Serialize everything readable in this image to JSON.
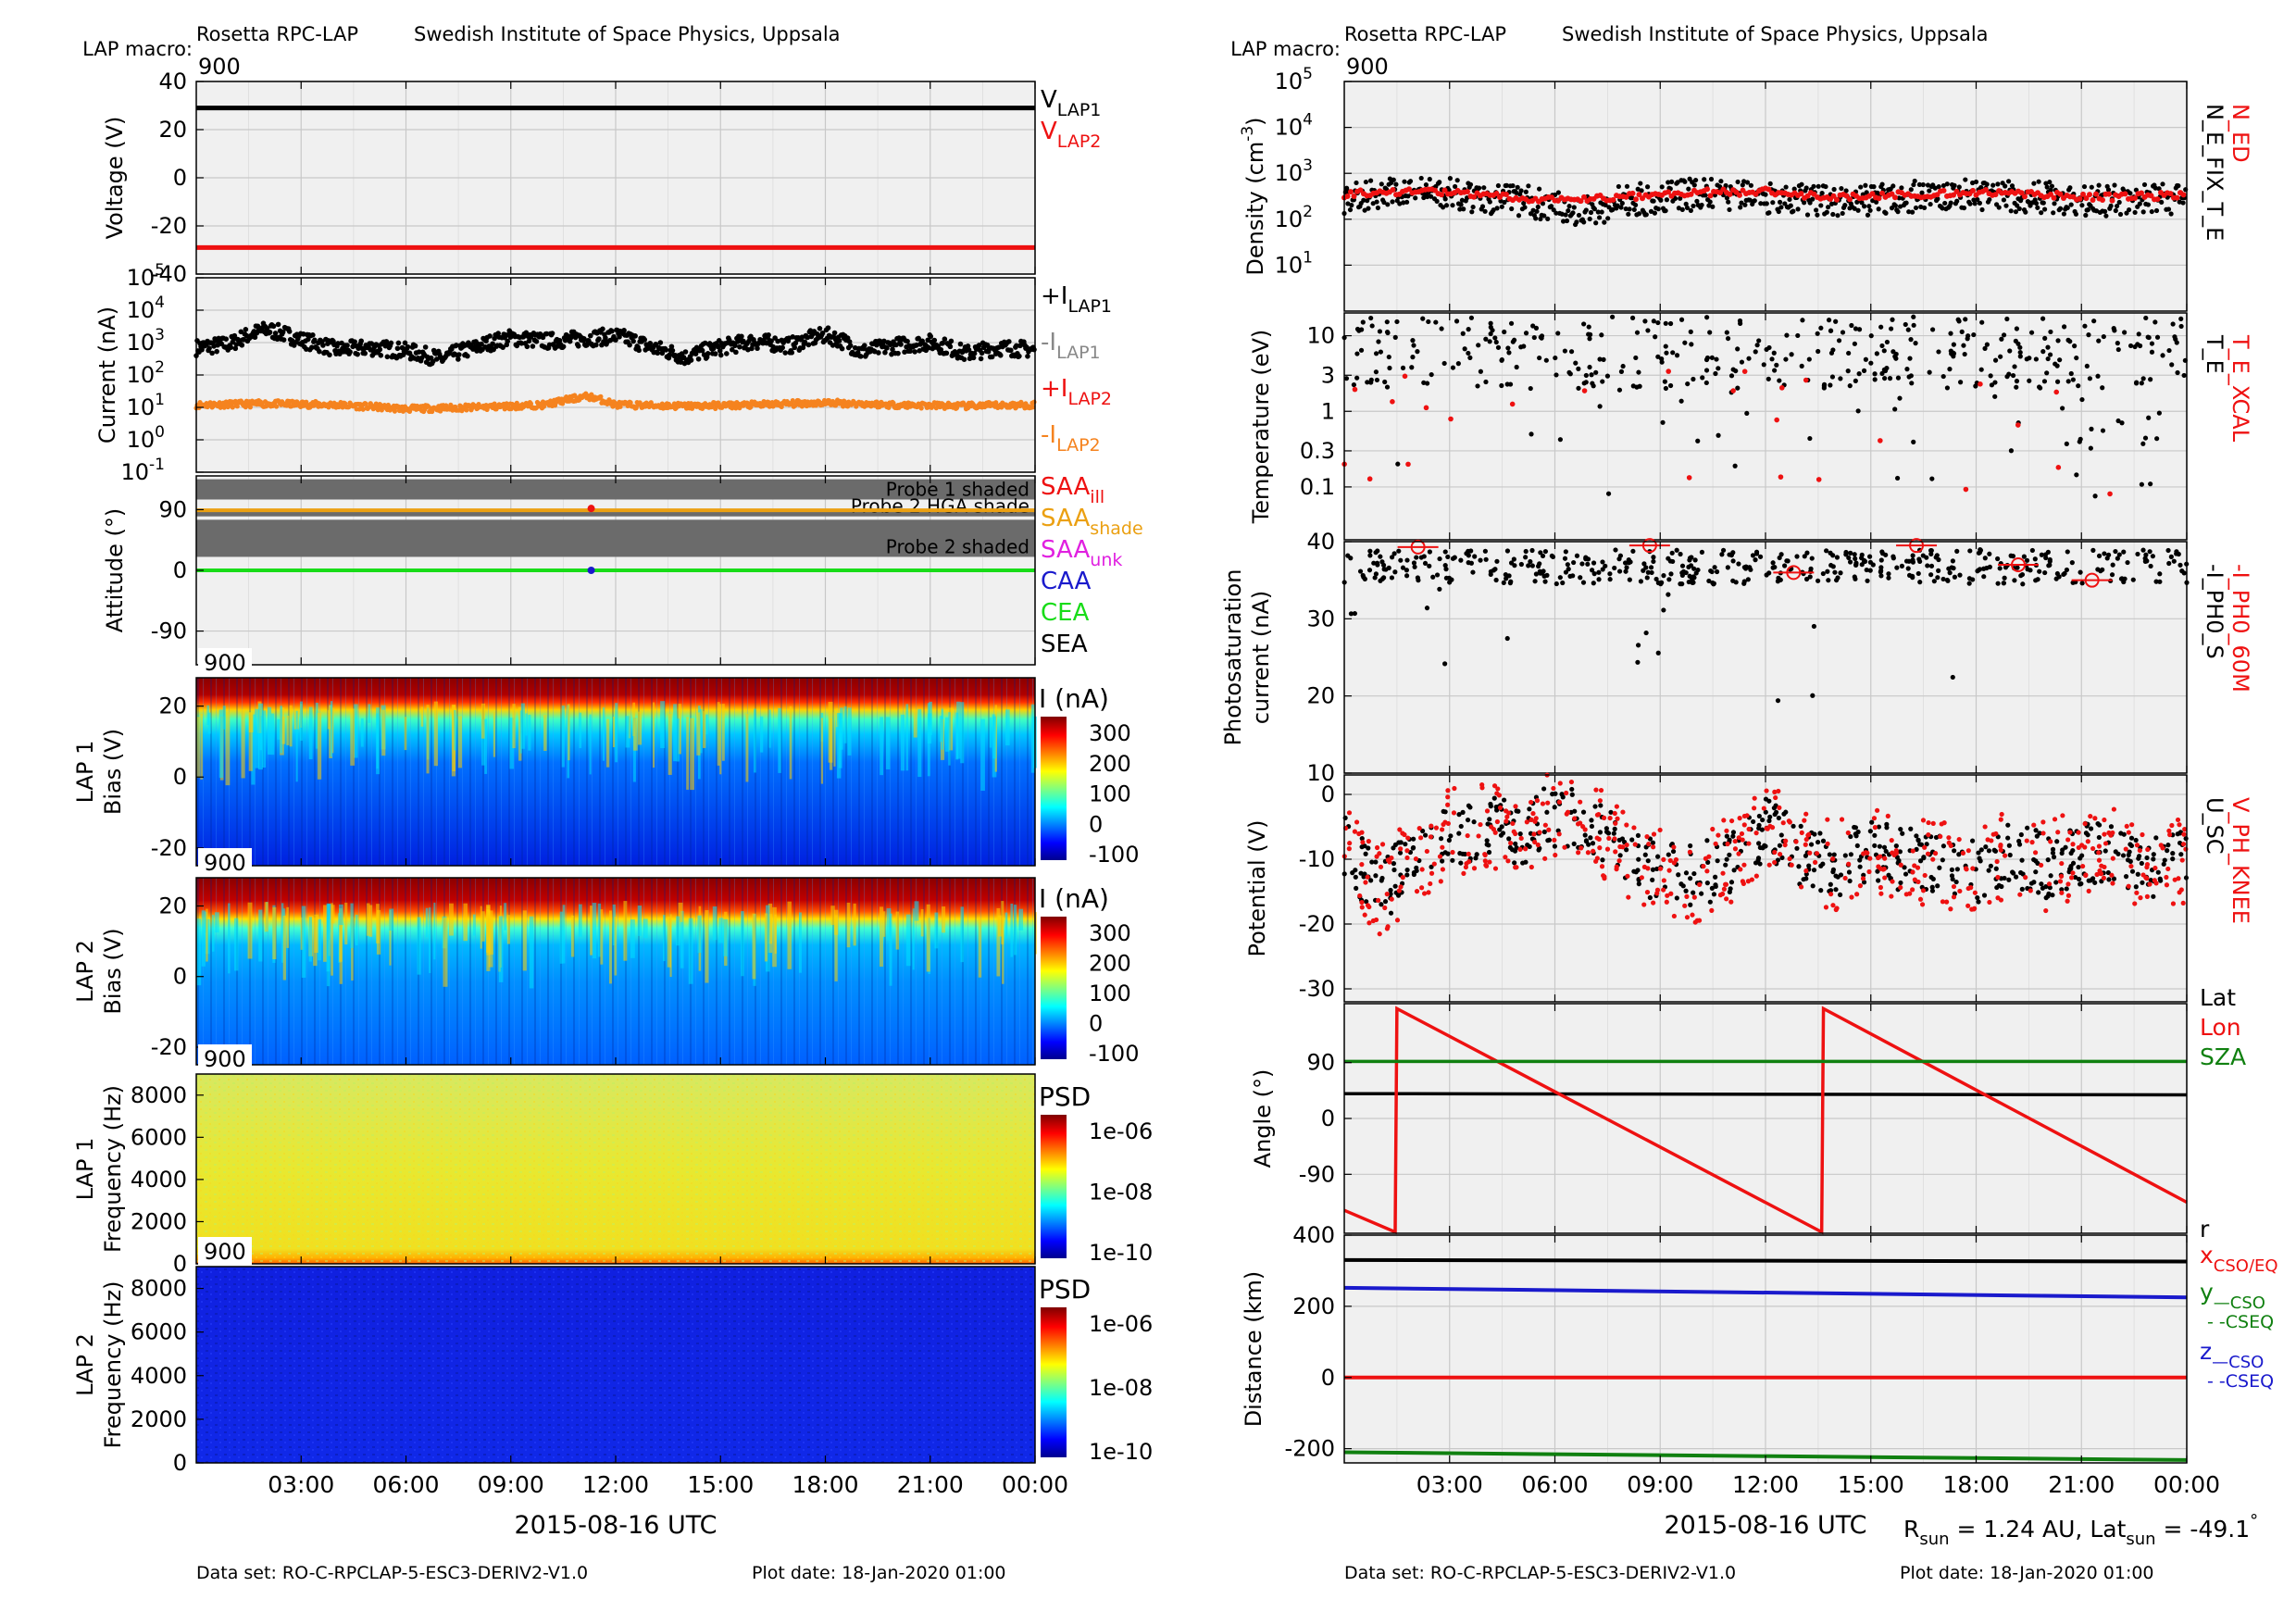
{
  "header": {
    "title_left": "Rosetta RPC-LAP",
    "title_right": "Swedish Institute of Space Physics, Uppsala",
    "macro_label": "LAP macro:",
    "macro_value": "900"
  },
  "footer": {
    "dataset": "Data set: RO-C-RPCLAP-5-ESC3-DERIV2-V1.0",
    "plot_date": "Plot date: 18-Jan-2020 01:00"
  },
  "rsun": {
    "r_main": "R",
    "r_sub": "sun",
    "r_val": " = 1.24 AU, Lat",
    "lat_sub": "sun",
    "lat_val": " = -49.1",
    "deg": "°"
  },
  "time_axis": {
    "ticks": [
      "03:00",
      "06:00",
      "09:00",
      "12:00",
      "15:00",
      "18:00",
      "21:00",
      "00:00"
    ],
    "tick_hours": [
      3,
      6,
      9,
      12,
      15,
      18,
      21,
      24
    ],
    "label": "2015-08-16 UTC"
  },
  "colors": {
    "black": "#000000",
    "red": "#ee1111",
    "grey": "#888888",
    "orange": "#f5831f",
    "amber": "#eba012",
    "magenta": "#e020e0",
    "blue": "#1a1acc",
    "green": "#18dc18",
    "darkgreen": "#108010",
    "panel_bg": "#f0f0f0",
    "shade": "#6b6b6b"
  },
  "chart_data": [
    {
      "id": "voltage",
      "type": "line",
      "ylabel": "Voltage (V)",
      "ylim": [
        -40,
        40
      ],
      "yticks": [
        "40",
        "20",
        "0",
        "-20",
        "-40"
      ],
      "ytick_values": [
        40,
        20,
        0,
        -20,
        -40
      ],
      "series": [
        {
          "name_main": "V",
          "name_sub": "LAP1",
          "color": "#000000",
          "x": [
            0,
            24
          ],
          "values": [
            29,
            29
          ]
        },
        {
          "name_main": "V",
          "name_sub": "LAP2",
          "color": "#ee1111",
          "x": [
            0,
            24
          ],
          "values": [
            -29,
            -29
          ]
        }
      ]
    },
    {
      "id": "current",
      "type": "scatter",
      "scale": "log",
      "ylabel": "Current (nA)",
      "ylim": [
        0.1,
        100000
      ],
      "yticks": [
        {
          "v": 100000,
          "base": "10",
          "exp": "5"
        },
        {
          "v": 10000,
          "base": "10",
          "exp": "4"
        },
        {
          "v": 1000,
          "base": "10",
          "exp": "3"
        },
        {
          "v": 100,
          "base": "10",
          "exp": "2"
        },
        {
          "v": 10,
          "base": "10",
          "exp": "1"
        },
        {
          "v": 1,
          "base": "10",
          "exp": "0"
        },
        {
          "v": 0.1,
          "base": "10",
          "exp": "-1"
        }
      ],
      "legend": [
        {
          "main": "+I",
          "sub": "LAP1",
          "color": "#000000"
        },
        {
          "main": "-I",
          "sub": "LAP1",
          "color": "#888888"
        },
        {
          "main": "+I",
          "sub": "LAP2",
          "color": "#ee1111"
        },
        {
          "main": "-I",
          "sub": "LAP2",
          "color": "#f5831f"
        }
      ],
      "series": [
        {
          "name": "+I LAP1",
          "color": "#000000",
          "x": [
            0,
            1,
            2,
            3,
            4,
            5,
            6,
            7,
            8,
            9,
            10,
            11,
            12,
            13,
            14,
            15,
            16,
            17,
            18,
            19,
            20,
            21,
            22,
            23,
            24
          ],
          "values": [
            700,
            900,
            2500,
            1200,
            600,
            700,
            550,
            300,
            700,
            1400,
            1100,
            1300,
            1600,
            700,
            350,
            700,
            1100,
            800,
            1700,
            500,
            800,
            1000,
            450,
            700,
            600
          ]
        },
        {
          "name": "-I LAP2",
          "color": "#f5831f",
          "x": [
            0,
            2,
            4,
            6,
            8,
            10,
            11.2,
            12,
            14,
            16,
            18,
            20,
            22,
            24
          ],
          "values": [
            12,
            13,
            12,
            9,
            10,
            12,
            22,
            12,
            11,
            12,
            14,
            12,
            11,
            12
          ]
        }
      ]
    },
    {
      "id": "attitude",
      "type": "line",
      "ylabel": "Attitude (°)",
      "ylim": [
        -140,
        140
      ],
      "yticks": [
        "90",
        "0",
        "-90"
      ],
      "ytick_values": [
        90,
        0,
        -90
      ],
      "shaded_bands": [
        {
          "label": "Probe 1 shaded",
          "from": 135,
          "to": 105
        },
        {
          "label": "Probe 2 HGA shade",
          "from": 89,
          "to": 80
        },
        {
          "label": "Probe 2 shaded",
          "from": 75,
          "to": 20
        }
      ],
      "legend": [
        {
          "main": "SAA",
          "sub": "ill",
          "color": "#ee1111"
        },
        {
          "main": "SAA",
          "sub": "shade",
          "color": "#eba012"
        },
        {
          "main": "SAA",
          "sub": "unk",
          "color": "#e020e0"
        },
        {
          "main": "CAA",
          "sub": "",
          "color": "#1a1acc"
        },
        {
          "main": "CEA",
          "sub": "",
          "color": "#18dc18"
        },
        {
          "main": "SEA",
          "sub": "",
          "color": "#000000"
        }
      ],
      "series": [
        {
          "name": "SAA shade",
          "color": "#eba012",
          "x": [
            0,
            24
          ],
          "values": [
            89,
            89
          ]
        },
        {
          "name": "CEA",
          "color": "#18dc18",
          "x": [
            0,
            24
          ],
          "values": [
            0,
            0
          ]
        }
      ]
    },
    {
      "id": "lap1_bias",
      "type": "heatmap",
      "ylabel1": "LAP 1",
      "ylabel2": "Bias (V)",
      "macro": "900",
      "ylim": [
        -25,
        28
      ],
      "yticks": [
        "20",
        "0",
        "-20"
      ],
      "ytick_values": [
        20,
        0,
        -20
      ],
      "colorbar": {
        "label": "I (nA)",
        "ticks": [
          "300",
          "200",
          "100",
          "0",
          "-100"
        ]
      }
    },
    {
      "id": "lap2_bias",
      "type": "heatmap",
      "ylabel1": "LAP 2",
      "ylabel2": "Bias (V)",
      "macro": "900",
      "ylim": [
        -25,
        28
      ],
      "yticks": [
        "20",
        "0",
        "-20"
      ],
      "ytick_values": [
        20,
        0,
        -20
      ],
      "colorbar": {
        "label": "I (nA)",
        "ticks": [
          "300",
          "200",
          "100",
          "0",
          "-100"
        ]
      }
    },
    {
      "id": "lap1_freq",
      "type": "heatmap",
      "ylabel1": "LAP 1",
      "ylabel2": "Frequency (Hz)",
      "macro": "900",
      "ylim": [
        0,
        9000
      ],
      "yticks": [
        "8000",
        "6000",
        "4000",
        "2000",
        "0"
      ],
      "ytick_values": [
        8000,
        6000,
        4000,
        2000,
        0
      ],
      "colorbar": {
        "label": "PSD",
        "ticks": [
          "1e-06",
          "1e-08",
          "1e-10"
        ]
      }
    },
    {
      "id": "lap2_freq",
      "type": "heatmap",
      "ylabel1": "LAP 2",
      "ylabel2": "Frequency (Hz)",
      "macro": "900",
      "ylim": [
        0,
        9000
      ],
      "yticks": [
        "8000",
        "6000",
        "4000",
        "2000",
        "0"
      ],
      "ytick_values": [
        8000,
        6000,
        4000,
        2000,
        0
      ],
      "colorbar": {
        "label": "PSD",
        "ticks": [
          "1e-06",
          "1e-08",
          "1e-10"
        ]
      }
    },
    {
      "id": "density",
      "type": "scatter",
      "scale": "log",
      "ylabel": "Density (cm",
      "ylabel_exp": "-3",
      "ylabel_end": ")",
      "ylim": [
        1,
        100000
      ],
      "yticks": [
        {
          "v": 100000,
          "base": "10",
          "exp": "5"
        },
        {
          "v": 10000,
          "base": "10",
          "exp": "4"
        },
        {
          "v": 1000,
          "base": "10",
          "exp": "3"
        },
        {
          "v": 100,
          "base": "10",
          "exp": "2"
        },
        {
          "v": 10,
          "base": "10",
          "exp": "1"
        }
      ],
      "legend_red": "N_ED",
      "legend_black": "N_E_FIX_T_E",
      "series": [
        {
          "name": "N_E_FIX_T_E",
          "color": "#000000",
          "x": [
            0,
            2,
            4,
            6,
            7,
            8,
            10,
            12,
            14,
            16,
            18,
            20,
            22,
            24
          ],
          "values": [
            300,
            400,
            300,
            200,
            150,
            250,
            350,
            300,
            250,
            300,
            350,
            300,
            250,
            300
          ]
        },
        {
          "name": "N_ED",
          "color": "#ee1111",
          "x": [
            0,
            2,
            4,
            6,
            8,
            10,
            12,
            14,
            16,
            18,
            20,
            22,
            24
          ],
          "values": [
            350,
            420,
            320,
            260,
            300,
            380,
            400,
            300,
            340,
            380,
            330,
            300,
            340
          ]
        }
      ]
    },
    {
      "id": "temperature",
      "type": "scatter",
      "scale": "log",
      "ylabel": "Temperature (eV)",
      "ylim": [
        0.02,
        20
      ],
      "yticks": [
        "10",
        "3",
        "1",
        "0.3",
        "0.1"
      ],
      "ytick_values": [
        10,
        3,
        1,
        0.3,
        0.1
      ],
      "legend_red": "T_E_XCAL",
      "legend_black": "T_E"
    },
    {
      "id": "photosat",
      "type": "scatter",
      "ylabel1": "Photosaturation",
      "ylabel2": "current (nA)",
      "ylim": [
        10,
        40
      ],
      "yticks": [
        "40",
        "30",
        "20",
        "10"
      ],
      "ytick_values": [
        40,
        30,
        20,
        10
      ],
      "legend_red": "-I_PH0_60M",
      "legend_black": "-I_PH0_S"
    },
    {
      "id": "potential",
      "type": "scatter",
      "ylabel": "Potential (V)",
      "ylim": [
        -32,
        3
      ],
      "yticks": [
        "0",
        "-10",
        "-20",
        "-30"
      ],
      "ytick_values": [
        0,
        -10,
        -20,
        -30
      ],
      "legend_red": "V_PH_KNEE",
      "legend_black": "U_SC",
      "series": [
        {
          "name": "U_SC",
          "color": "#000000",
          "x": [
            0,
            1,
            2,
            3,
            4,
            5,
            6,
            7,
            8,
            9,
            10,
            11,
            12,
            13,
            14,
            15,
            16,
            17,
            18,
            19,
            20,
            21,
            22,
            23,
            24
          ],
          "values": [
            -8,
            -15,
            -10,
            -6,
            -5,
            -6,
            -3,
            -5,
            -9,
            -12,
            -13,
            -10,
            -5,
            -9,
            -11,
            -9,
            -10,
            -11,
            -12,
            -9,
            -11,
            -9,
            -9,
            -11,
            -10
          ]
        }
      ]
    },
    {
      "id": "angle",
      "type": "line",
      "ylabel": "Angle (°)",
      "ylim": [
        -185,
        185
      ],
      "yticks": [
        "90",
        "0",
        "-90"
      ],
      "ytick_values": [
        90,
        0,
        -90
      ],
      "legend": [
        {
          "label": "Lat",
          "color": "#000000"
        },
        {
          "label": "Lon",
          "color": "#ee1111"
        },
        {
          "label": "SZA",
          "color": "#108010"
        }
      ],
      "series": [
        {
          "name": "Lat",
          "color": "#000000",
          "x": [
            0,
            24
          ],
          "values": [
            40,
            38
          ]
        },
        {
          "name": "Lon",
          "color": "#ee1111",
          "x": [
            0,
            1.45,
            1.5,
            13.6,
            13.65,
            24
          ],
          "values": [
            -148,
            -183,
            177,
            -183,
            177,
            -135
          ]
        },
        {
          "name": "SZA",
          "color": "#108010",
          "x": [
            0,
            24
          ],
          "values": [
            92,
            92
          ]
        }
      ]
    },
    {
      "id": "distance",
      "type": "line",
      "ylabel": "Distance (km)",
      "ylim": [
        -240,
        400
      ],
      "yticks": [
        "400",
        "200",
        "0",
        "-200"
      ],
      "ytick_values": [
        400,
        200,
        0,
        -200
      ],
      "legend": [
        {
          "main": "r",
          "sub": "",
          "color": "#000000"
        },
        {
          "main": "x",
          "sub": "CSO/EQ",
          "color": "#ee1111"
        },
        {
          "main": "y",
          "sub": "—CSO",
          "color": "#108010",
          "extra": "- -CSEQ"
        },
        {
          "main": "z",
          "sub": "—CSO",
          "color": "#1a1acc",
          "extra": "- -CSEQ"
        }
      ],
      "series": [
        {
          "name": "r",
          "color": "#000000",
          "x": [
            0,
            24
          ],
          "values": [
            330,
            326
          ]
        },
        {
          "name": "z",
          "color": "#1a1acc",
          "x": [
            0,
            24
          ],
          "values": [
            252,
            225
          ]
        },
        {
          "name": "x",
          "color": "#ee1111",
          "x": [
            0,
            24
          ],
          "values": [
            0,
            0
          ]
        },
        {
          "name": "y",
          "color": "#108010",
          "x": [
            0,
            24
          ],
          "values": [
            -210,
            -232
          ]
        }
      ]
    }
  ]
}
